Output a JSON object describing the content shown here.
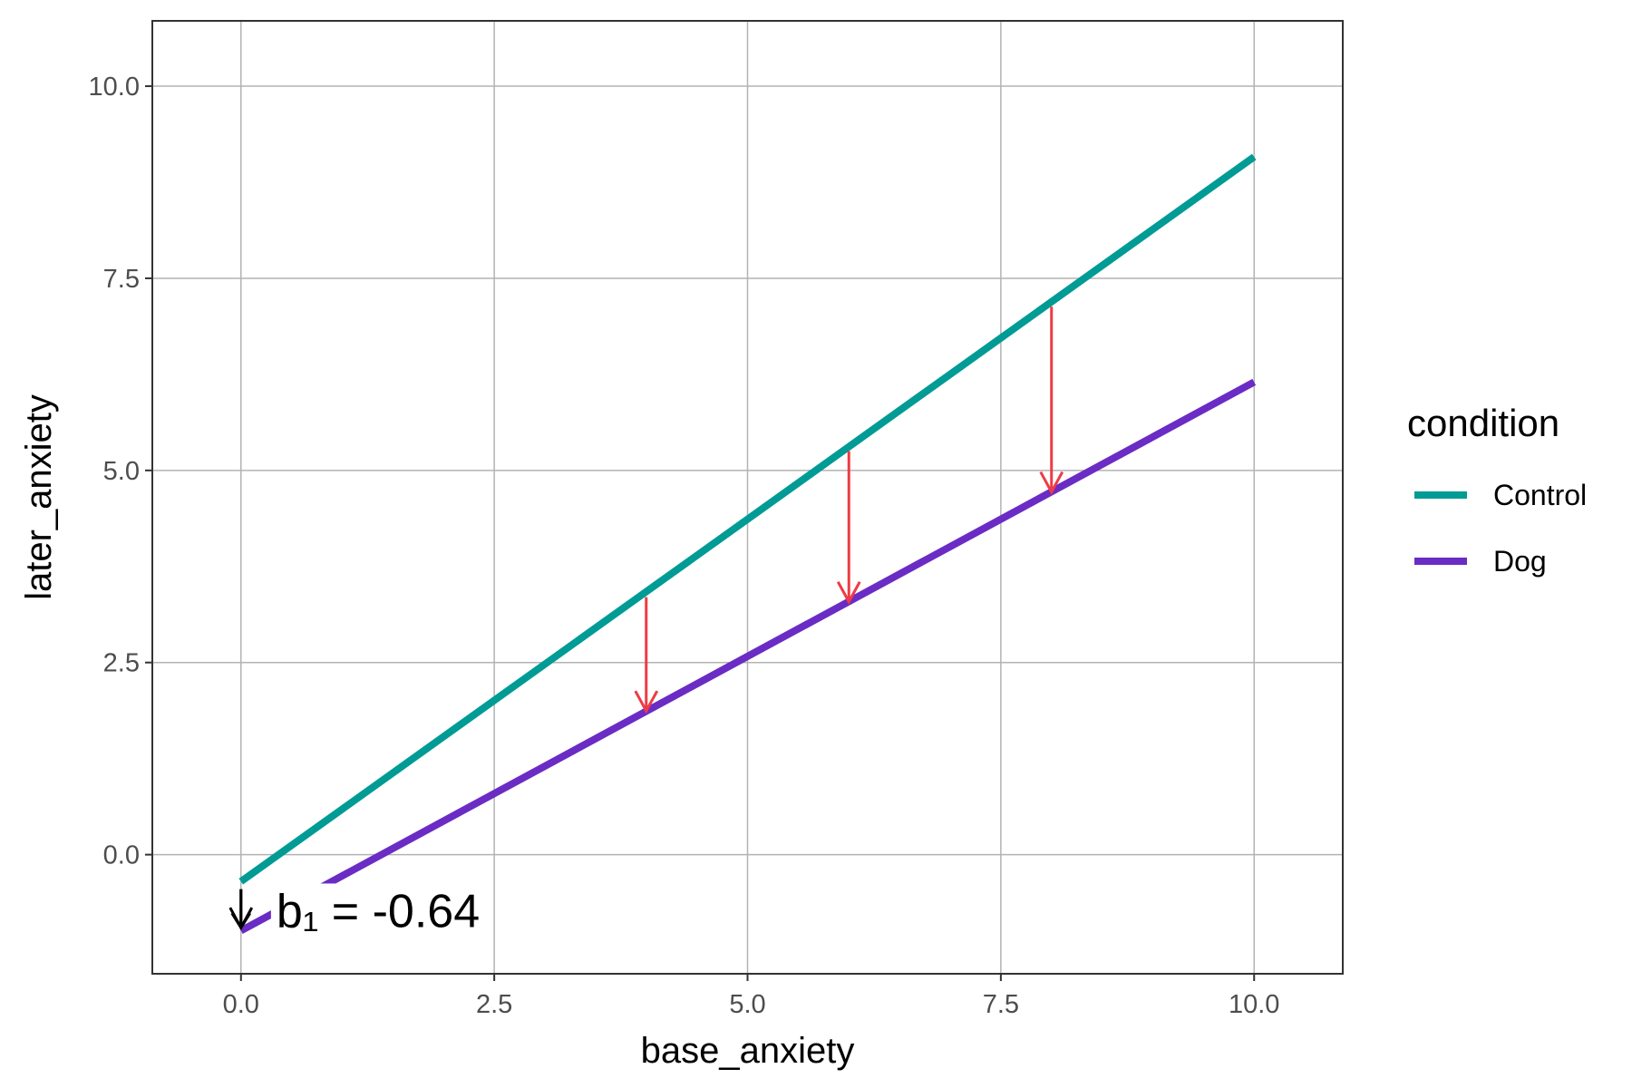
{
  "chart_data": {
    "type": "line",
    "xlabel": "base_anxiety",
    "ylabel": "later_anxiety",
    "xlim": [
      -0.875,
      10.875
    ],
    "ylim": [
      -1.55,
      10.85
    ],
    "x_ticks": [
      0,
      2.5,
      5,
      7.5,
      10
    ],
    "x_tick_labels": [
      "0.0",
      "2.5",
      "5.0",
      "7.5",
      "10.0"
    ],
    "y_ticks": [
      0,
      2.5,
      5,
      7.5,
      10
    ],
    "y_tick_labels": [
      "0.0",
      "2.5",
      "5.0",
      "7.5",
      "10.0"
    ],
    "grid": true,
    "legend": {
      "title": "condition",
      "placement": "right"
    },
    "series": [
      {
        "name": "Control",
        "color": "#009B95",
        "x": [
          0,
          10
        ],
        "y": [
          -0.35,
          9.08
        ]
      },
      {
        "name": "Dog",
        "color": "#6A2CC4",
        "x": [
          0,
          10
        ],
        "y": [
          -0.99,
          6.15
        ]
      }
    ],
    "arrows": [
      {
        "x": 4,
        "y_start": 3.35,
        "y_end": 1.87,
        "color": "#EE3B45"
      },
      {
        "x": 6,
        "y_start": 5.25,
        "y_end": 3.29,
        "color": "#EE3B45"
      },
      {
        "x": 8,
        "y_start": 7.13,
        "y_end": 4.72,
        "color": "#EE3B45"
      },
      {
        "x": 0,
        "y_start": -0.45,
        "y_end": -0.95,
        "color": "#000000"
      }
    ],
    "annotations": [
      {
        "text": "b₁ = -0.64",
        "x": 0.35,
        "y": -0.78
      }
    ]
  }
}
